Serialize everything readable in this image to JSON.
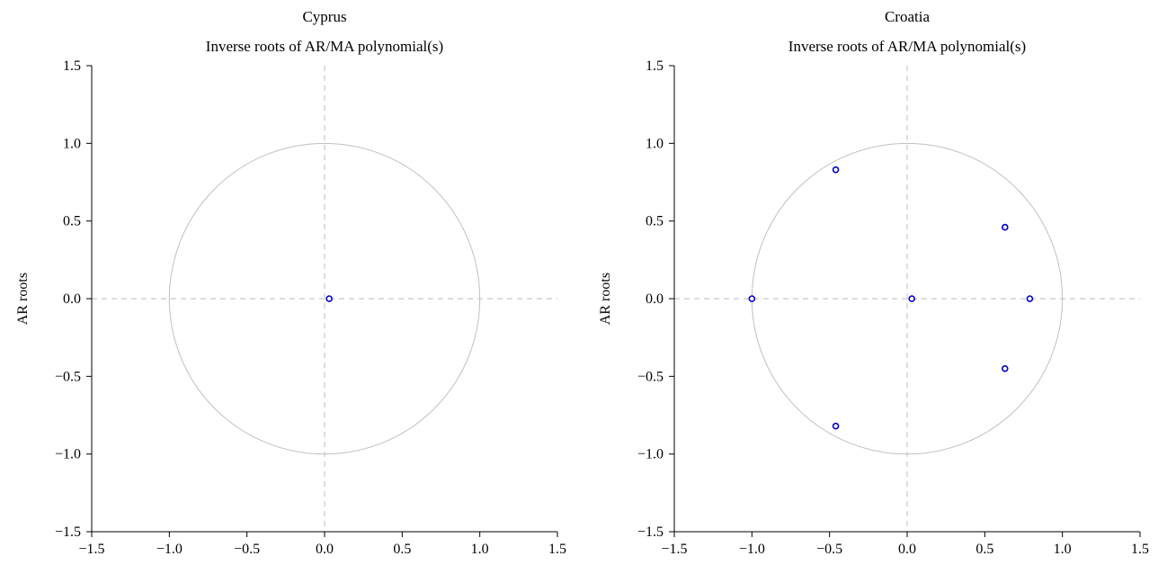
{
  "chart_data": [
    {
      "type": "scatter",
      "title": "Cyprus",
      "subtitle": "Inverse roots of AR/MA polynomial(s)",
      "xlabel": "",
      "ylabel": "AR roots",
      "xlim": [
        -1.5,
        1.5
      ],
      "ylim": [
        -1.5,
        1.5
      ],
      "xticks": [
        -1.5,
        -1.0,
        -0.5,
        0.0,
        0.5,
        1.0,
        1.5
      ],
      "yticks": [
        -1.5,
        -1.0,
        -0.5,
        0.0,
        0.5,
        1.0,
        1.5
      ],
      "xtick_labels": [
        "−1.5",
        "−1.0",
        "−0.5",
        "0.0",
        "0.5",
        "1.0",
        "1.5"
      ],
      "ytick_labels": [
        "−1.5",
        "−1.0",
        "−0.5",
        "0.0",
        "0.5",
        "1.0",
        "1.5"
      ],
      "unit_circle": true,
      "reference_lines": {
        "x": 0,
        "y": 0,
        "style": "dashed"
      },
      "grid": false,
      "points": [
        {
          "x": 0.03,
          "y": 0.0
        }
      ]
    },
    {
      "type": "scatter",
      "title": "Croatia",
      "subtitle": "Inverse roots of AR/MA polynomial(s)",
      "xlabel": "",
      "ylabel": "AR roots",
      "xlim": [
        -1.5,
        1.5
      ],
      "ylim": [
        -1.5,
        1.5
      ],
      "xticks": [
        -1.5,
        -1.0,
        -0.5,
        0.0,
        0.5,
        1.0,
        1.5
      ],
      "yticks": [
        -1.5,
        -1.0,
        -0.5,
        0.0,
        0.5,
        1.0,
        1.5
      ],
      "xtick_labels": [
        "−1.5",
        "−1.0",
        "−0.5",
        "0.0",
        "0.5",
        "1.0",
        "1.5"
      ],
      "ytick_labels": [
        "−1.5",
        "−1.0",
        "−0.5",
        "0.0",
        "0.5",
        "1.0",
        "1.5"
      ],
      "unit_circle": true,
      "reference_lines": {
        "x": 0,
        "y": 0,
        "style": "dashed"
      },
      "grid": false,
      "points": [
        {
          "x": -1.0,
          "y": 0.0
        },
        {
          "x": -0.46,
          "y": 0.83
        },
        {
          "x": -0.46,
          "y": -0.82
        },
        {
          "x": 0.03,
          "y": 0.0
        },
        {
          "x": 0.63,
          "y": 0.46
        },
        {
          "x": 0.63,
          "y": -0.45
        },
        {
          "x": 0.79,
          "y": 0.0
        }
      ]
    }
  ],
  "colors": {
    "points": "#0000cc",
    "unit_circle": "#c0c0c0",
    "reference_lines": "#c8c8c8",
    "axes": "#000000"
  }
}
